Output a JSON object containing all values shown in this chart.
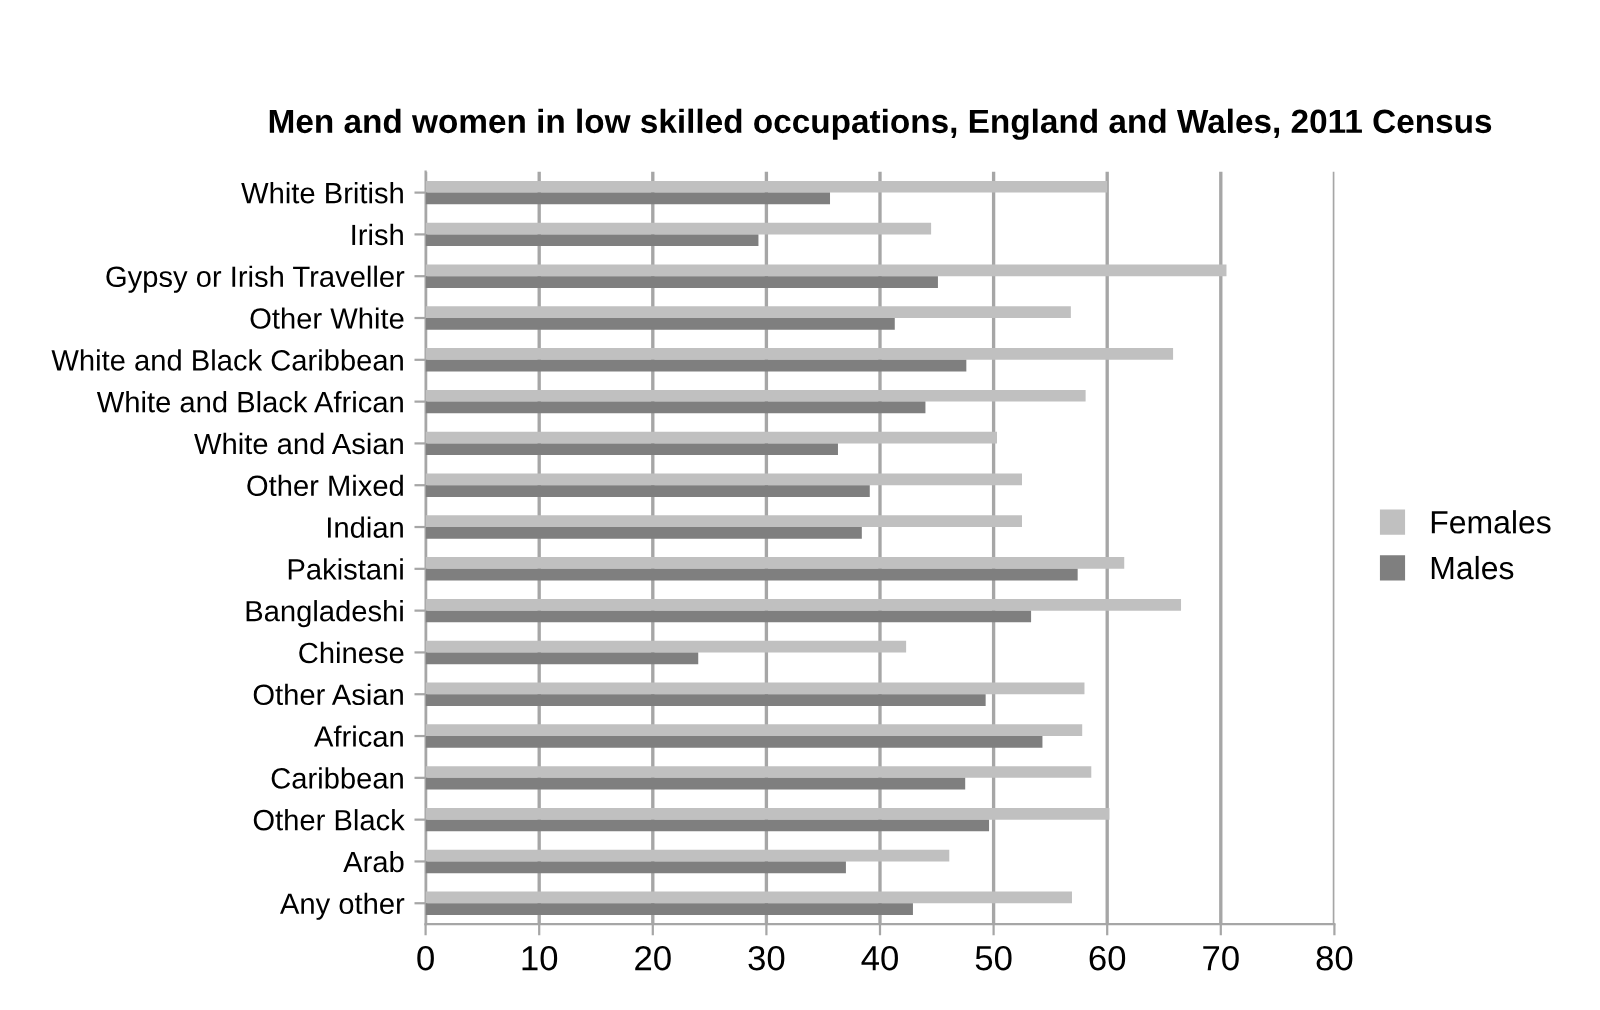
{
  "chart_data": {
    "type": "bar",
    "orientation": "horizontal",
    "title": "Men and women in low skilled occupations, England and Wales, 2011 Census",
    "categories": [
      "White British",
      "Irish",
      "Gypsy or Irish Traveller",
      "Other White",
      "White and Black Caribbean",
      "White and Black African",
      "White and Asian",
      "Other Mixed",
      "Indian",
      "Pakistani",
      "Bangladeshi",
      "Chinese",
      "Other Asian",
      "African",
      "Caribbean",
      "Other Black",
      "Arab",
      "Any other"
    ],
    "series": [
      {
        "name": "Females",
        "color": "#c0c0c0",
        "values": [
          60.0,
          44.5,
          70.5,
          56.8,
          65.8,
          58.1,
          50.3,
          52.5,
          52.5,
          61.5,
          66.5,
          42.3,
          58.0,
          57.8,
          58.6,
          60.2,
          46.1,
          56.9
        ]
      },
      {
        "name": "Males",
        "color": "#7f7f7f",
        "values": [
          35.6,
          29.3,
          45.1,
          41.3,
          47.6,
          44.0,
          36.3,
          39.1,
          38.4,
          57.4,
          53.3,
          24.0,
          49.3,
          54.3,
          47.5,
          49.6,
          37.0,
          42.9
        ]
      }
    ],
    "xlim": [
      0,
      80
    ],
    "xticks": [
      0,
      10,
      20,
      30,
      40,
      50,
      60,
      70,
      80
    ],
    "grid": "x",
    "legend": "right"
  }
}
